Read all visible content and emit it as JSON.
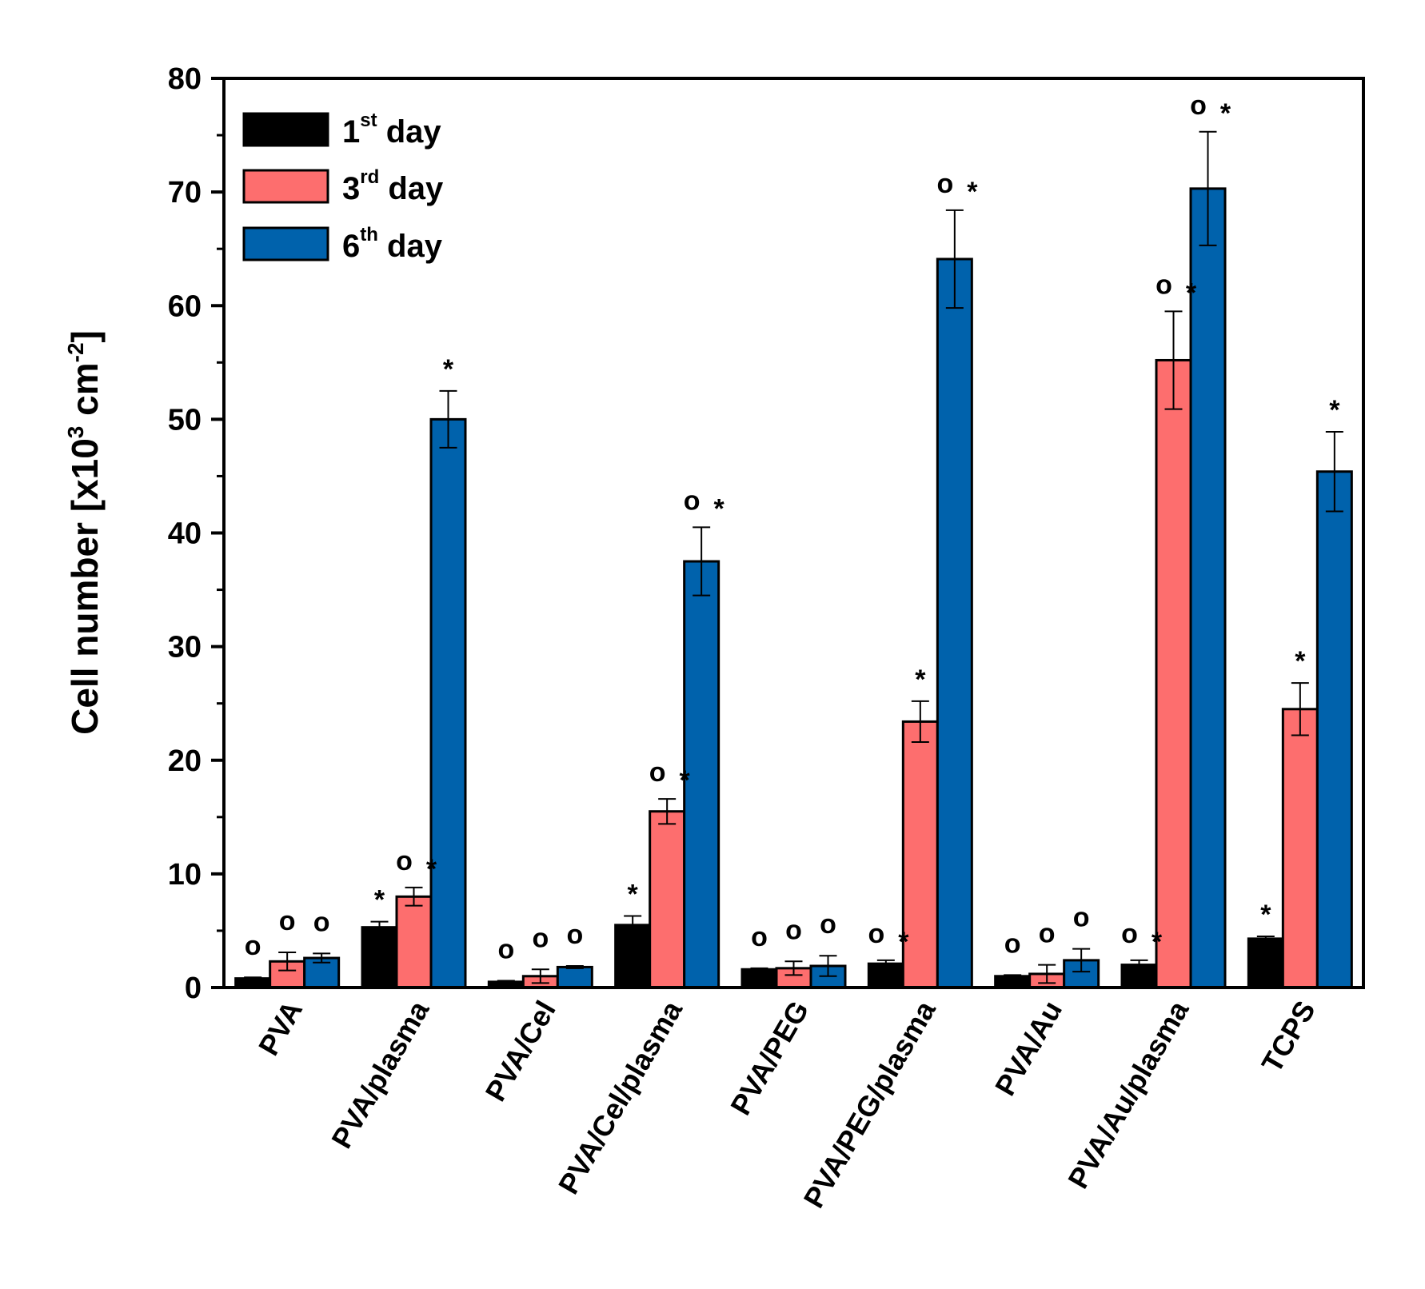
{
  "chart_data": {
    "type": "bar",
    "title": "",
    "xlabel": "",
    "ylabel": {
      "prefix": "Cell number [x10",
      "sup1": "3",
      "middle": " cm",
      "sup2": "-2",
      "suffix": "]"
    },
    "ylim": [
      0,
      80
    ],
    "yticks": [
      "0",
      "10",
      "20",
      "30",
      "40",
      "50",
      "60",
      "70",
      "80"
    ],
    "categories": [
      "PVA",
      "PVA/plasma",
      "PVA/Cel",
      "PVA/Cel/plasma",
      "PVA/PEG",
      "PVA/PEG/plasma",
      "PVA/Au",
      "PVA/Au/plasma",
      "TCPS"
    ],
    "legend_position": "top-left",
    "series": [
      {
        "name": "1st day",
        "label_number": "1",
        "label_sup": "st",
        "label_suffix": " day",
        "color": "#000000",
        "values": [
          0.8,
          5.3,
          0.5,
          5.5,
          1.6,
          2.1,
          1.0,
          2.0,
          4.3
        ],
        "errors": [
          0.1,
          0.5,
          0.1,
          0.8,
          0.1,
          0.3,
          0.1,
          0.4,
          0.2
        ],
        "marks": [
          "o",
          "* ",
          "o",
          "* ",
          "o",
          "o *",
          "o",
          "o *",
          "* "
        ]
      },
      {
        "name": "3rd day",
        "label_number": "3",
        "label_sup": "rd",
        "label_suffix": " day",
        "color": "#fd6e6e",
        "values": [
          2.3,
          8.0,
          1.0,
          15.5,
          1.7,
          23.4,
          1.2,
          55.2,
          24.5
        ],
        "errors": [
          0.8,
          0.8,
          0.6,
          1.1,
          0.6,
          1.8,
          0.8,
          4.3,
          2.3
        ],
        "marks": [
          "o",
          "o *",
          "o",
          "o *",
          "o",
          "* ",
          "o",
          "o *",
          "* "
        ]
      },
      {
        "name": "6th day",
        "label_number": "6",
        "label_sup": "th",
        "label_suffix": " day",
        "color": "#0062ac",
        "values": [
          2.6,
          50.0,
          1.8,
          37.5,
          1.9,
          64.1,
          2.4,
          70.3,
          45.4
        ],
        "errors": [
          0.4,
          2.5,
          0.1,
          3.0,
          0.9,
          4.3,
          1.0,
          5.0,
          3.5
        ],
        "marks": [
          "o",
          "* ",
          "o",
          "o *",
          "o",
          "o *",
          "o",
          "o*",
          "* "
        ]
      }
    ]
  }
}
